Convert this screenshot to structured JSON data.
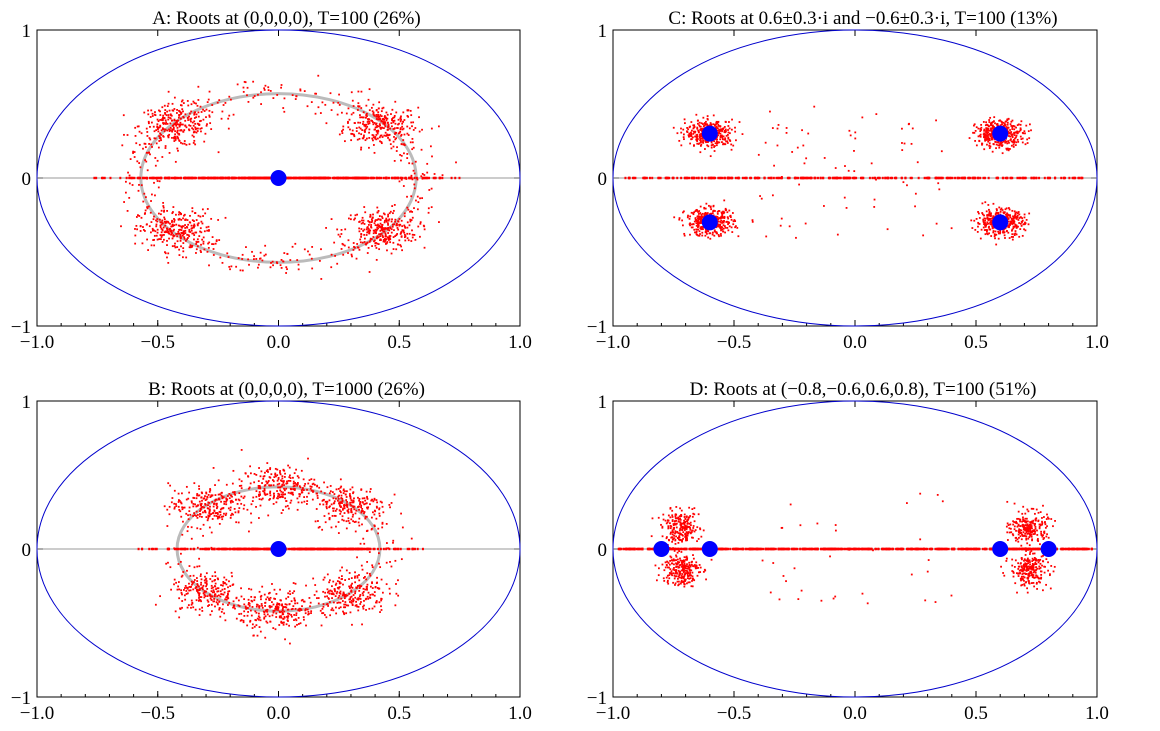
{
  "chart_data": [
    {
      "id": "A",
      "type": "scatter",
      "title": "A: Roots at (0,0,0,0), T=100 (26%)",
      "xlim": [
        -1,
        1
      ],
      "ylim": [
        -1,
        1
      ],
      "xticks": [
        "−1.0",
        "−0.5",
        "0.0",
        "0.5",
        "1.0"
      ],
      "yticks": [
        "1",
        "0",
        "−1"
      ],
      "unit_circle_color": "#0000cc",
      "root_color": "#0000ff",
      "point_color": "#ff0000",
      "reference_ring": {
        "radius": 0.57,
        "color": "#bbbbbb"
      },
      "roots": [
        [
          0,
          0
        ]
      ],
      "clusters": [
        {
          "angle_deg": 40,
          "radius": 0.55,
          "n": 260
        },
        {
          "angle_deg": 140,
          "radius": 0.55,
          "n": 260
        },
        {
          "angle_deg": -40,
          "radius": 0.55,
          "n": 260
        },
        {
          "angle_deg": -140,
          "radius": 0.55,
          "n": 260
        }
      ],
      "ring_points": {
        "radius": 0.58,
        "n": 420
      },
      "real_axis_points": {
        "xmin": -0.78,
        "xmax": 0.78,
        "n": 500
      }
    },
    {
      "id": "B",
      "type": "scatter",
      "title": "B: Roots at (0,0,0,0), T=1000 (26%)",
      "xlim": [
        -1,
        1
      ],
      "ylim": [
        -1,
        1
      ],
      "xticks": [
        "−1.0",
        "−0.5",
        "0.0",
        "0.5",
        "1.0"
      ],
      "yticks": [
        "1",
        "0",
        "−1"
      ],
      "unit_circle_color": "#0000cc",
      "root_color": "#0000ff",
      "point_color": "#ff0000",
      "reference_ring": {
        "radius": 0.42,
        "color": "#bbbbbb"
      },
      "roots": [
        [
          0,
          0
        ]
      ],
      "clusters": [
        {
          "angle_deg": 45,
          "radius": 0.42,
          "n": 220
        },
        {
          "angle_deg": 90,
          "radius": 0.42,
          "n": 220
        },
        {
          "angle_deg": 135,
          "radius": 0.42,
          "n": 220
        },
        {
          "angle_deg": -45,
          "radius": 0.42,
          "n": 220
        },
        {
          "angle_deg": -90,
          "radius": 0.42,
          "n": 220
        },
        {
          "angle_deg": -135,
          "radius": 0.42,
          "n": 220
        }
      ],
      "ring_points": {
        "radius": 0.42,
        "n": 200
      },
      "real_axis_points": {
        "xmin": -0.6,
        "xmax": 0.6,
        "n": 400
      }
    },
    {
      "id": "C",
      "type": "scatter",
      "title": "C: Roots at 0.6±0.3·i and −0.6±0.3·i, T=100 (13%)",
      "xlim": [
        -1,
        1
      ],
      "ylim": [
        -1,
        1
      ],
      "xticks": [
        "−1.0",
        "−0.5",
        "0.0",
        "0.5",
        "1.0"
      ],
      "yticks": [
        "1",
        "0",
        "−1"
      ],
      "unit_circle_color": "#0000cc",
      "root_color": "#0000ff",
      "point_color": "#ff0000",
      "roots": [
        [
          0.6,
          0.3
        ],
        [
          0.6,
          -0.3
        ],
        [
          -0.6,
          0.3
        ],
        [
          -0.6,
          -0.3
        ]
      ],
      "clusters": [
        {
          "cx": 0.6,
          "cy": 0.3,
          "n": 380
        },
        {
          "cx": 0.6,
          "cy": -0.3,
          "n": 380
        },
        {
          "cx": -0.6,
          "cy": 0.3,
          "n": 380
        },
        {
          "cx": -0.6,
          "cy": -0.3,
          "n": 380
        }
      ],
      "sparse_points": {
        "n": 70
      },
      "real_axis_points": {
        "xmin": -0.95,
        "xmax": 0.95,
        "n": 300
      }
    },
    {
      "id": "D",
      "type": "scatter",
      "title": "D: Roots at (−0.8,−0.6,0.6,0.8), T=100 (51%)",
      "xlim": [
        -1,
        1
      ],
      "ylim": [
        -1,
        1
      ],
      "xticks": [
        "−1.0",
        "−0.5",
        "0.0",
        "0.5",
        "1.0"
      ],
      "yticks": [
        "1",
        "0",
        "−1"
      ],
      "unit_circle_color": "#0000cc",
      "root_color": "#0000ff",
      "point_color": "#ff0000",
      "roots": [
        [
          -0.8,
          0
        ],
        [
          -0.6,
          0
        ],
        [
          0.6,
          0
        ],
        [
          0.8,
          0
        ]
      ],
      "clusters": [
        {
          "cx": -0.72,
          "cy": 0.14,
          "n": 230
        },
        {
          "cx": -0.72,
          "cy": -0.14,
          "n": 230
        },
        {
          "cx": 0.72,
          "cy": 0.14,
          "n": 230
        },
        {
          "cx": 0.72,
          "cy": -0.14,
          "n": 230
        }
      ],
      "sparse_points": {
        "n": 35
      },
      "real_axis_points": {
        "xmin": -0.98,
        "xmax": 0.98,
        "n": 700
      }
    }
  ]
}
